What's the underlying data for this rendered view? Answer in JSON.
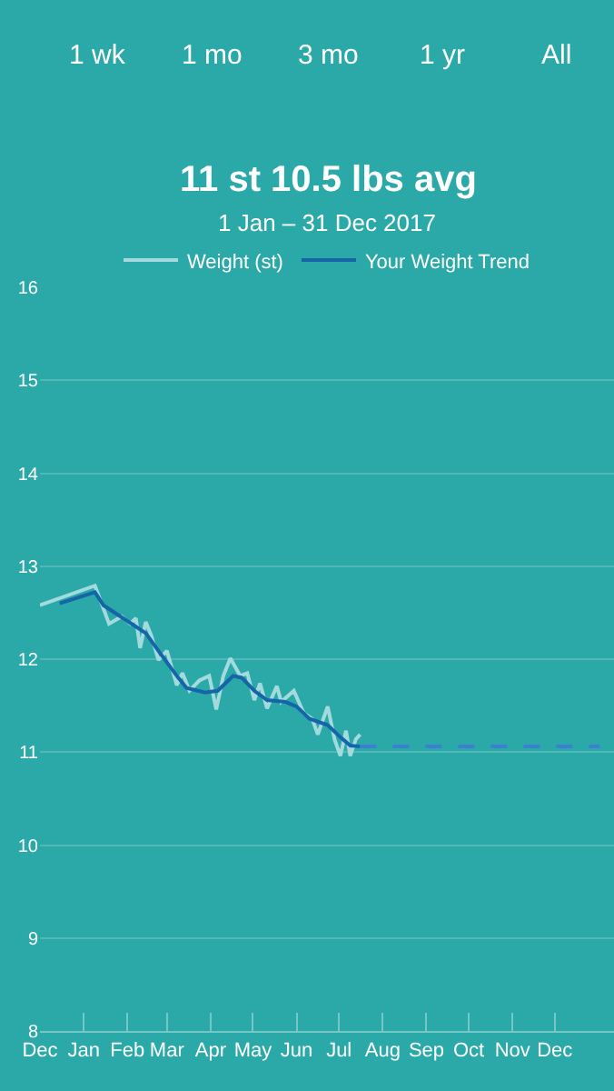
{
  "chart_data": {
    "type": "line",
    "title": "11 st 10.5 lbs avg",
    "subtitle": "1 Jan – 31 Dec 2017",
    "annotations": [
      "1 wk",
      "1 mo",
      "3 mo",
      "1 yr",
      "All"
    ],
    "legend": "top",
    "grid": "y",
    "marker": "none",
    "xlim": [
      "2016-12-01",
      "2018-01-12"
    ],
    "xticks": [
      {
        "value": "2016-12-01",
        "label": "Dec"
      },
      {
        "value": "2017-01-01",
        "label": "Jan"
      },
      {
        "value": "2017-02-01",
        "label": "Feb"
      },
      {
        "value": "2017-03-01",
        "label": "Mar"
      },
      {
        "value": "2017-04-01",
        "label": "Apr"
      },
      {
        "value": "2017-05-01",
        "label": "May"
      },
      {
        "value": "2017-06-01",
        "label": "Jun"
      },
      {
        "value": "2017-07-01",
        "label": "Jul"
      },
      {
        "value": "2017-08-01",
        "label": "Aug"
      },
      {
        "value": "2017-09-01",
        "label": "Sep"
      },
      {
        "value": "2017-10-01",
        "label": "Oct"
      },
      {
        "value": "2017-11-01",
        "label": "Nov"
      },
      {
        "value": "2017-12-01",
        "label": "Dec"
      }
    ],
    "ylim": [
      8,
      16
    ],
    "yticks": [
      8,
      9,
      10,
      11,
      12,
      13,
      14,
      15,
      16
    ],
    "series": [
      {
        "name": "Weight (st)",
        "color": "#a3dade",
        "line_style": "solid",
        "x": [
          "2016-12-01",
          "2017-01-09",
          "2017-01-19",
          "2017-01-28",
          "2017-02-03",
          "2017-02-07",
          "2017-02-10",
          "2017-02-14",
          "2017-02-18",
          "2017-02-23",
          "2017-03-01",
          "2017-03-08",
          "2017-03-12",
          "2017-03-17",
          "2017-03-24",
          "2017-03-31",
          "2017-04-05",
          "2017-04-10",
          "2017-04-15",
          "2017-04-22",
          "2017-04-27",
          "2017-05-02",
          "2017-05-06",
          "2017-05-11",
          "2017-05-18",
          "2017-05-21",
          "2017-05-30",
          "2017-06-06",
          "2017-06-12",
          "2017-06-16",
          "2017-06-23",
          "2017-06-28",
          "2017-07-02",
          "2017-07-06",
          "2017-07-09",
          "2017-07-13",
          "2017-07-16"
        ],
        "values": [
          12.58,
          12.79,
          12.38,
          12.46,
          12.38,
          12.44,
          12.12,
          12.4,
          12.25,
          11.99,
          12.09,
          11.72,
          11.85,
          11.66,
          11.77,
          11.82,
          11.46,
          11.82,
          12.01,
          11.82,
          11.85,
          11.56,
          11.74,
          11.47,
          11.71,
          11.54,
          11.66,
          11.42,
          11.36,
          11.19,
          11.49,
          11.13,
          10.96,
          11.23,
          10.96,
          11.14,
          11.19
        ]
      },
      {
        "name": "Your Weight Trend",
        "color": "#1565a8",
        "line_style": "solid",
        "x": [
          "2016-12-15",
          "2017-01-09",
          "2017-01-15",
          "2017-01-28",
          "2017-02-14",
          "2017-02-23",
          "2017-03-08",
          "2017-03-15",
          "2017-03-28",
          "2017-04-06",
          "2017-04-17",
          "2017-04-23",
          "2017-05-02",
          "2017-05-11",
          "2017-05-24",
          "2017-06-01",
          "2017-06-10",
          "2017-06-23",
          "2017-07-02",
          "2017-07-09",
          "2017-07-16"
        ],
        "values": [
          12.6,
          12.72,
          12.58,
          12.45,
          12.28,
          12.09,
          11.82,
          11.69,
          11.64,
          11.66,
          11.82,
          11.8,
          11.66,
          11.56,
          11.54,
          11.49,
          11.36,
          11.29,
          11.16,
          11.07,
          11.06
        ]
      },
      {
        "color": "#3d80d2",
        "line_style": "dashed",
        "x": [
          "2017-07-16",
          "2018-01-02"
        ],
        "values": [
          11.06,
          11.06
        ]
      }
    ]
  }
}
